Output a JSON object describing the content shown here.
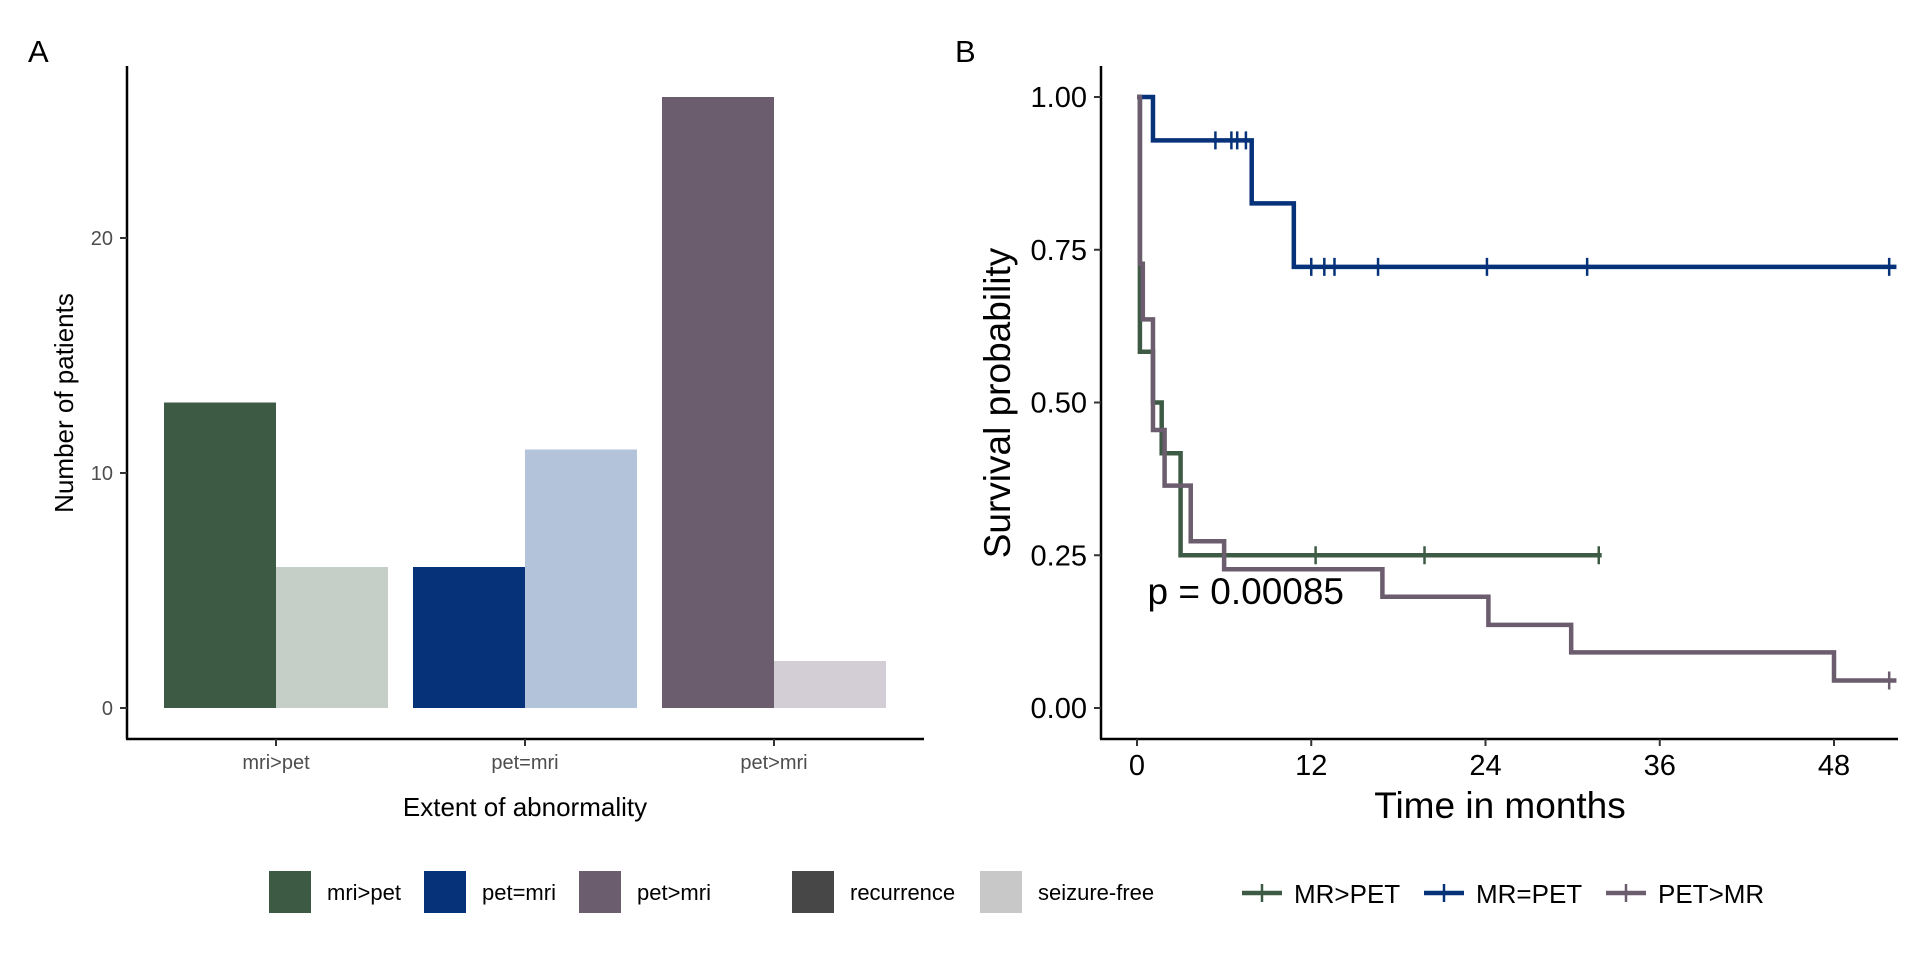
{
  "chart_data": [
    {
      "panel": "A",
      "type": "bar",
      "xlabel": "Extent of abnormality",
      "ylabel": "Number of patients",
      "categories": [
        "mri>pet",
        "pet=mri",
        "pet>mri"
      ],
      "yticks": [
        0,
        10,
        20
      ],
      "ylim": [
        0,
        27.3
      ],
      "grid": false,
      "series": [
        {
          "name": "recurrence",
          "values": [
            13,
            6,
            26
          ]
        },
        {
          "name": "seizure-free",
          "values": [
            6,
            11,
            2
          ]
        }
      ],
      "colors": {
        "recurrence": [
          "#3d5a45",
          "#06327a",
          "#6b5c6e"
        ],
        "seizure-free": [
          "#c5cfc8",
          "#b3c3da",
          "#d3ced6"
        ]
      }
    },
    {
      "panel": "B",
      "type": "line",
      "xlabel": "Time in months",
      "ylabel": "Survival probability",
      "xticks": [
        0,
        12,
        24,
        36,
        48
      ],
      "yticks": [
        "0.00",
        "0.25",
        "0.50",
        "0.75",
        "1.00"
      ],
      "xlim": [
        -2.6,
        53
      ],
      "ylim": [
        -0.04,
        1.05
      ],
      "grid": false,
      "annotation": {
        "text": "p = 0.00085",
        "x": 1,
        "y": 0.19
      },
      "series": [
        {
          "name": "MR>PET",
          "color": "#3d5a45",
          "steps": [
            [
              0,
              1.0
            ],
            [
              0.2,
              0.583
            ],
            [
              1.1,
              0.5
            ],
            [
              1.7,
              0.417
            ],
            [
              3.0,
              0.25
            ],
            [
              32,
              0.25
            ]
          ],
          "censor": [
            [
              12.3,
              0.25
            ],
            [
              19.8,
              0.25
            ],
            [
              31.8,
              0.25
            ]
          ]
        },
        {
          "name": "MR=PET",
          "color": "#06327a",
          "steps": [
            [
              0,
              1.0
            ],
            [
              1.1,
              0.929
            ],
            [
              7.9,
              0.826
            ],
            [
              10.8,
              0.722
            ],
            [
              52.3,
              0.722
            ]
          ],
          "censor": [
            [
              5.4,
              0.929
            ],
            [
              6.5,
              0.929
            ],
            [
              6.9,
              0.929
            ],
            [
              7.5,
              0.929
            ],
            [
              12.0,
              0.722
            ],
            [
              12.9,
              0.722
            ],
            [
              13.6,
              0.722
            ],
            [
              16.6,
              0.722
            ],
            [
              24.1,
              0.722
            ],
            [
              31.0,
              0.722
            ],
            [
              51.8,
              0.722
            ]
          ]
        },
        {
          "name": "PET>MR",
          "color": "#6b5c6e",
          "steps": [
            [
              0,
              1.0
            ],
            [
              0.2,
              0.727
            ],
            [
              0.4,
              0.636
            ],
            [
              1.1,
              0.455
            ],
            [
              1.9,
              0.364
            ],
            [
              3.7,
              0.273
            ],
            [
              6.0,
              0.227
            ],
            [
              16.9,
              0.182
            ],
            [
              24.2,
              0.136
            ],
            [
              29.9,
              0.091
            ],
            [
              48.0,
              0.045
            ],
            [
              52.3,
              0.045
            ]
          ],
          "censor": [
            [
              51.8,
              0.045
            ]
          ]
        }
      ]
    }
  ],
  "panels": {
    "a_label": "A",
    "b_label": "B"
  },
  "legend": {
    "fill_items": [
      {
        "label": "mri>pet",
        "color": "#3d5a45"
      },
      {
        "label": "pet=mri",
        "color": "#06327a"
      },
      {
        "label": "pet>mri",
        "color": "#6b5c6e"
      }
    ],
    "alpha_items": [
      {
        "label": "recurrence",
        "color": "#474747"
      },
      {
        "label": "seizure-free",
        "color": "#c8c8c8"
      }
    ],
    "strata_items": [
      {
        "label": "MR>PET",
        "color": "#3d5a45"
      },
      {
        "label": "MR=PET",
        "color": "#06327a"
      },
      {
        "label": "PET>MR",
        "color": "#6b5c6e"
      }
    ]
  }
}
